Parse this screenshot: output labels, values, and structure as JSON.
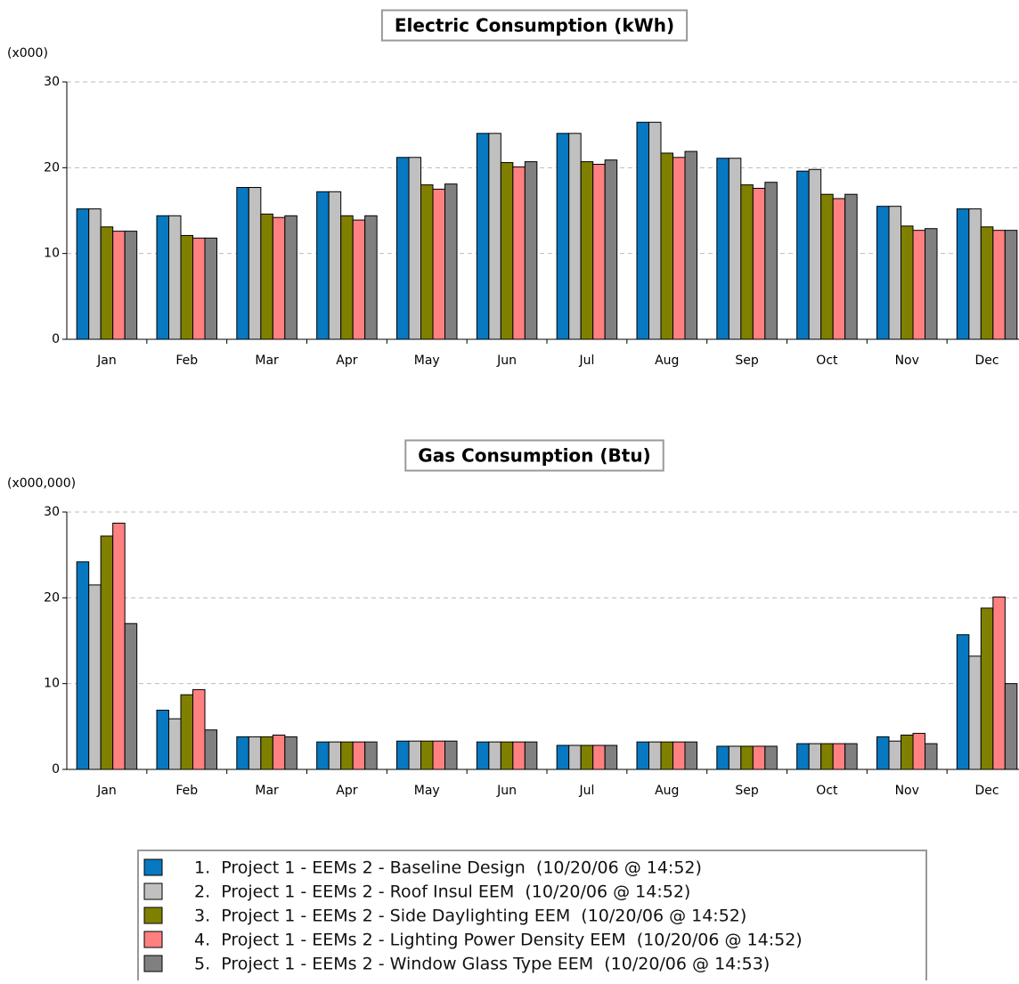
{
  "chart_data": [
    {
      "type": "bar",
      "title": "Electric Consumption (kWh)",
      "unit_label": "(x000)",
      "categories": [
        "Jan",
        "Feb",
        "Mar",
        "Apr",
        "May",
        "Jun",
        "Jul",
        "Aug",
        "Sep",
        "Oct",
        "Nov",
        "Dec"
      ],
      "ylim": [
        0,
        30
      ],
      "yticks": [
        0,
        10,
        20,
        30
      ],
      "grid": true,
      "series": [
        {
          "values": [
            15.2,
            14.4,
            17.7,
            17.2,
            21.2,
            24.0,
            24.0,
            25.3,
            21.1,
            19.6,
            15.5,
            15.2
          ]
        },
        {
          "values": [
            15.2,
            14.4,
            17.7,
            17.2,
            21.2,
            24.0,
            24.0,
            25.3,
            21.1,
            19.8,
            15.5,
            15.2
          ]
        },
        {
          "values": [
            13.1,
            12.1,
            14.6,
            14.4,
            18.0,
            20.6,
            20.7,
            21.7,
            18.0,
            16.9,
            13.2,
            13.1
          ]
        },
        {
          "values": [
            12.6,
            11.8,
            14.2,
            13.9,
            17.5,
            20.1,
            20.4,
            21.2,
            17.6,
            16.4,
            12.7,
            12.7
          ]
        },
        {
          "values": [
            12.6,
            11.8,
            14.4,
            14.4,
            18.1,
            20.7,
            20.9,
            21.9,
            18.3,
            16.9,
            12.9,
            12.7
          ]
        }
      ]
    },
    {
      "type": "bar",
      "title": "Gas Consumption (Btu)",
      "unit_label": "(x000,000)",
      "categories": [
        "Jan",
        "Feb",
        "Mar",
        "Apr",
        "May",
        "Jun",
        "Jul",
        "Aug",
        "Sep",
        "Oct",
        "Nov",
        "Dec"
      ],
      "ylim": [
        0,
        30
      ],
      "yticks": [
        0,
        10,
        20,
        30
      ],
      "grid": true,
      "series": [
        {
          "values": [
            24.2,
            6.9,
            3.8,
            3.2,
            3.3,
            3.2,
            2.8,
            3.2,
            2.7,
            3.0,
            3.8,
            15.7
          ]
        },
        {
          "values": [
            21.5,
            5.9,
            3.8,
            3.2,
            3.3,
            3.2,
            2.8,
            3.2,
            2.7,
            3.0,
            3.3,
            13.2
          ]
        },
        {
          "values": [
            27.2,
            8.7,
            3.8,
            3.2,
            3.3,
            3.2,
            2.8,
            3.2,
            2.7,
            3.0,
            4.0,
            18.8
          ]
        },
        {
          "values": [
            28.7,
            9.3,
            4.0,
            3.2,
            3.3,
            3.2,
            2.8,
            3.2,
            2.7,
            3.0,
            4.2,
            20.1
          ]
        },
        {
          "values": [
            17.0,
            4.6,
            3.8,
            3.2,
            3.3,
            3.2,
            2.8,
            3.2,
            2.7,
            3.0,
            3.0,
            10.0
          ]
        }
      ]
    }
  ],
  "legend": [
    {
      "name": "1.  Project 1 - EEMs 2 - Baseline Design  (10/20/06 @ 14:52)",
      "color": "#0878c0"
    },
    {
      "name": "2.  Project 1 - EEMs 2 - Roof Insul EEM  (10/20/06 @ 14:52)",
      "color": "#c0c0c0"
    },
    {
      "name": "3.  Project 1 - EEMs 2 - Side Daylighting EEM  (10/20/06 @ 14:52)",
      "color": "#808000"
    },
    {
      "name": "4.  Project 1 - EEMs 2 - Lighting Power Density EEM  (10/20/06 @ 14:52)",
      "color": "#ff8080"
    },
    {
      "name": "5.  Project 1 - EEMs 2 - Window Glass Type EEM  (10/20/06 @ 14:53)",
      "color": "#808080"
    }
  ]
}
